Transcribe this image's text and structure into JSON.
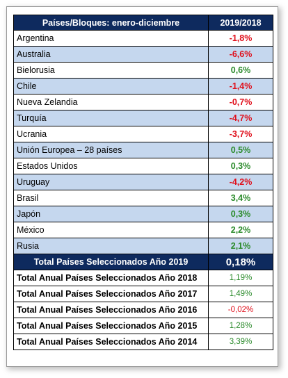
{
  "header": {
    "col1": "Países/Bloques: enero-diciembre",
    "col2": "2019/2018"
  },
  "countries": [
    {
      "name": "Argentina",
      "value": "-1,8%",
      "sign": "neg"
    },
    {
      "name": "Australia",
      "value": "-6,6%",
      "sign": "neg"
    },
    {
      "name": "Bielorusia",
      "value": "0,6%",
      "sign": "pos"
    },
    {
      "name": "Chile",
      "value": "-1,4%",
      "sign": "neg"
    },
    {
      "name": "Nueva Zelandia",
      "value": "-0,7%",
      "sign": "neg"
    },
    {
      "name": "Turquía",
      "value": "-4,7%",
      "sign": "neg"
    },
    {
      "name": "Ucrania",
      "value": "-3,7%",
      "sign": "neg"
    },
    {
      "name": "Unión Europea – 28 países",
      "value": "0,5%",
      "sign": "pos"
    },
    {
      "name": "Estados Unidos",
      "value": "0,3%",
      "sign": "pos"
    },
    {
      "name": "Uruguay",
      "value": "-4,2%",
      "sign": "neg"
    },
    {
      "name": " Brasil",
      "value": "3,4%",
      "sign": "pos"
    },
    {
      "name": "Japón",
      "value": "0,3%",
      "sign": "pos"
    },
    {
      "name": "México",
      "value": "2,2%",
      "sign": "pos"
    },
    {
      "name": "Rusia",
      "value": "2,1%",
      "sign": "pos"
    }
  ],
  "total": {
    "label": "Total Países Seleccionados Año 2019",
    "value": "0,18%"
  },
  "annual": [
    {
      "label": "Total Anual Países Seleccionados Año 2018",
      "value": "1,19%",
      "sign": "pos"
    },
    {
      "label": "Total Anual Países Seleccionados Año 2017",
      "value": "1,49%",
      "sign": "pos"
    },
    {
      "label": "Total Anual Países Seleccionados Año 2016",
      "value": "-0,02%",
      "sign": "neg"
    },
    {
      "label": "Total Anual Países Seleccionados Año 2015",
      "value": "1,28%",
      "sign": "pos"
    },
    {
      "label": "Total Anual Países Seleccionados Año 2014",
      "value": "3,39%",
      "sign": "pos"
    }
  ],
  "colors": {
    "header_bg": "#0e2a5e",
    "stripe_bg": "#c5d7ee",
    "negative": "#e0101c",
    "positive": "#2a8a2a"
  }
}
